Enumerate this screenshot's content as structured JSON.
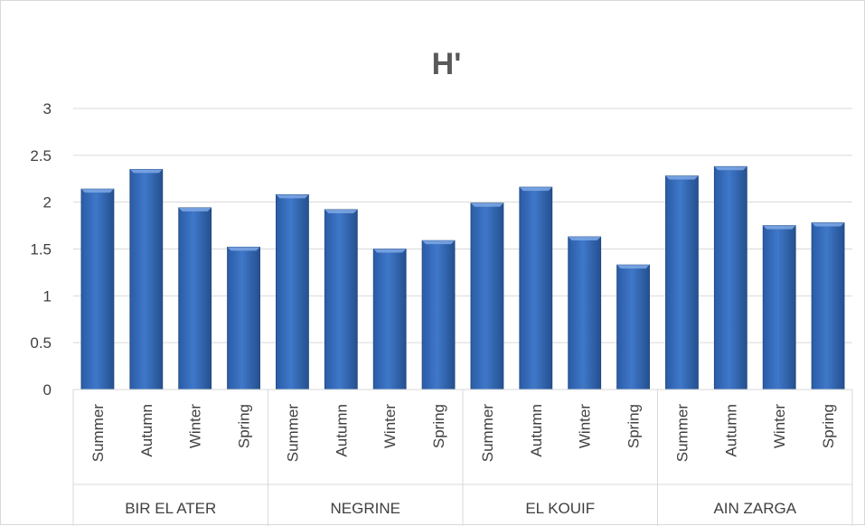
{
  "chart_data": {
    "type": "bar",
    "title": "H'",
    "xlabel": "",
    "ylabel": "",
    "ylim": [
      0,
      3
    ],
    "yticks": [
      "0",
      "0.5",
      "1",
      "1.5",
      "2",
      "2.5",
      "3"
    ],
    "grid": true,
    "legend": "none",
    "bar_color": "#2e63b0",
    "groups": [
      "BIR EL ATER",
      "NEGRINE",
      "EL KOUIF",
      "AIN ZARGA"
    ],
    "seasons": [
      "Summer",
      "Autumn",
      "Winter",
      "Spring"
    ],
    "values": [
      [
        2.14,
        2.35,
        1.94,
        1.52
      ],
      [
        2.08,
        1.92,
        1.5,
        1.59
      ],
      [
        1.99,
        2.16,
        1.63,
        1.33
      ],
      [
        2.28,
        2.38,
        1.75,
        1.78
      ]
    ]
  }
}
